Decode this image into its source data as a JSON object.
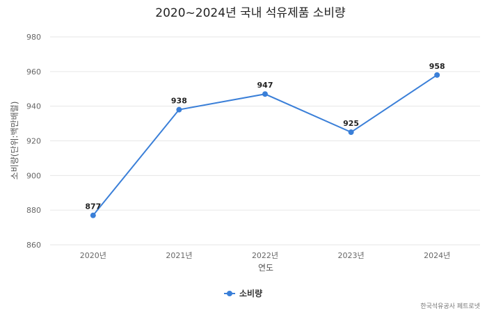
{
  "chart_data": {
    "type": "line",
    "title": "2020~2024년 국내 석유제품 소비량",
    "xlabel": "연도",
    "ylabel": "소비량(단위:백만배럴)",
    "categories": [
      "2020년",
      "2021년",
      "2022년",
      "2023년",
      "2024년"
    ],
    "series": [
      {
        "name": "소비량",
        "values": [
          877,
          938,
          947,
          925,
          958
        ],
        "color": "#3a7fd8"
      }
    ],
    "ylim": [
      860,
      980
    ],
    "yticks": [
      860,
      880,
      900,
      920,
      940,
      960,
      980
    ],
    "grid": true,
    "legend": "bottom-center",
    "source": "한국석유공사 페트로넷"
  }
}
